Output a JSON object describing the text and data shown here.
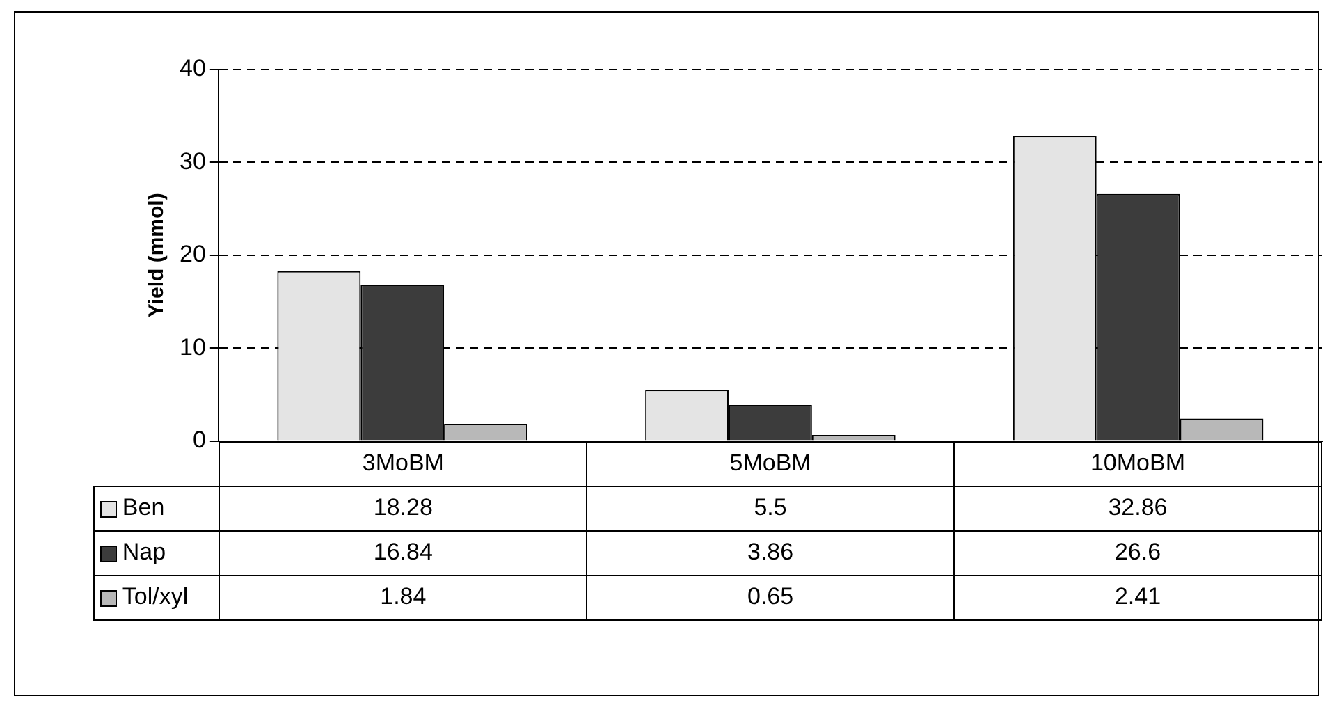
{
  "chart_data": {
    "type": "bar",
    "ylabel": "Yield (mmol)",
    "categories": [
      "3MoBM",
      "5MoBM",
      "10MoBM"
    ],
    "series": [
      {
        "name": "Ben",
        "color": "#e4e4e4",
        "values": [
          18.28,
          5.5,
          32.86
        ]
      },
      {
        "name": "Nap",
        "color": "#3c3c3c",
        "values": [
          16.84,
          3.86,
          26.6
        ]
      },
      {
        "name": "Tol/xyl",
        "color": "#b8b8b8",
        "values": [
          1.84,
          0.65,
          2.41
        ]
      }
    ],
    "ylim": [
      0,
      40
    ],
    "yticks": [
      0,
      10,
      20,
      30,
      40
    ],
    "grid": "y",
    "legend": "bottom",
    "data_labels": true
  }
}
